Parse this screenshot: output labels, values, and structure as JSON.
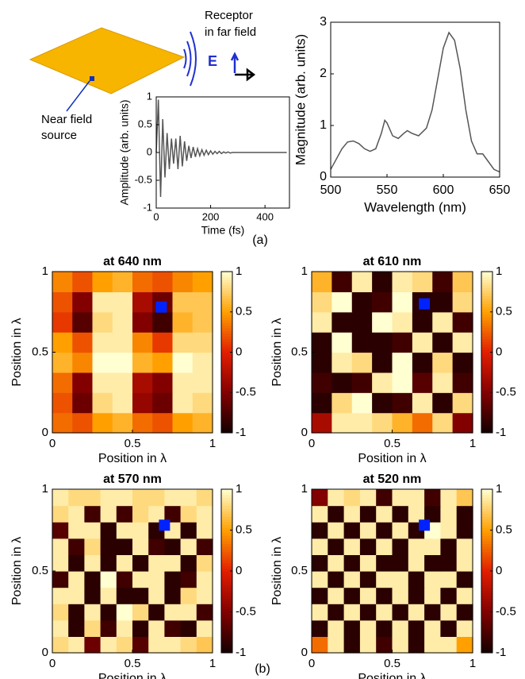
{
  "diagram": {
    "receptor_label": [
      "Receptor",
      "in far field"
    ],
    "source_label": [
      "Near field",
      "source"
    ],
    "field_label": "E"
  },
  "panel_labels": [
    "(a)",
    "(b)"
  ],
  "chart_data": [
    {
      "type": "line",
      "xlabel": "Time (fs)",
      "ylabel": "Amplitude (arb. units)",
      "xlim": [
        0,
        490
      ],
      "ylim": [
        -1,
        1
      ],
      "xticks": [
        0,
        200,
        400
      ],
      "yticks": [
        -1,
        -0.5,
        0,
        0.5,
        1
      ],
      "color": "#555555",
      "x": [
        0,
        8,
        16,
        24,
        32,
        40,
        48,
        56,
        64,
        72,
        80,
        88,
        96,
        104,
        112,
        120,
        128,
        136,
        144,
        152,
        160,
        168,
        176,
        184,
        192,
        200,
        208,
        216,
        224,
        232,
        240,
        248,
        256,
        264,
        272,
        280,
        288,
        296,
        304,
        312,
        320,
        328,
        336,
        344,
        352,
        360,
        368,
        376,
        384,
        392,
        400,
        408,
        416,
        424,
        432,
        440,
        448,
        456,
        464,
        472,
        480
      ],
      "values": [
        0,
        0.95,
        -0.8,
        0.6,
        -0.45,
        0.35,
        -0.3,
        0.25,
        -0.2,
        0.25,
        -0.3,
        0.3,
        -0.25,
        0.2,
        -0.15,
        0.12,
        -0.1,
        0.1,
        -0.08,
        0.07,
        -0.06,
        0.05,
        -0.05,
        0.04,
        -0.04,
        0.03,
        -0.03,
        0.02,
        -0.02,
        0.02,
        -0.02,
        0.01,
        -0.01,
        0.01,
        -0.01,
        0,
        0,
        0,
        0,
        0,
        0,
        0,
        0,
        0,
        0,
        0,
        0,
        0,
        0,
        0,
        0,
        0,
        0,
        0,
        0,
        0,
        0,
        0,
        0,
        0,
        0
      ]
    },
    {
      "type": "line",
      "xlabel": "Wavelength (nm)",
      "ylabel": "Magnitude (arb. units)",
      "xlim": [
        500,
        650
      ],
      "ylim": [
        0,
        3
      ],
      "xticks": [
        500,
        550,
        600,
        650
      ],
      "yticks": [
        0,
        1,
        2,
        3
      ],
      "color": "#555555",
      "x": [
        500,
        505,
        510,
        515,
        520,
        525,
        530,
        535,
        540,
        545,
        548,
        550,
        555,
        560,
        565,
        568,
        572,
        578,
        585,
        590,
        595,
        600,
        605,
        610,
        615,
        620,
        625,
        630,
        635,
        640,
        645,
        650
      ],
      "values": [
        0.15,
        0.35,
        0.55,
        0.68,
        0.7,
        0.65,
        0.55,
        0.5,
        0.55,
        0.85,
        1.1,
        1.05,
        0.8,
        0.75,
        0.85,
        0.9,
        0.85,
        0.8,
        0.95,
        1.3,
        1.9,
        2.5,
        2.8,
        2.65,
        2.1,
        1.3,
        0.7,
        0.45,
        0.45,
        0.3,
        0.15,
        0.1
      ]
    },
    {
      "type": "heatmap",
      "title": "at 640 nm",
      "xlabel": "Position in λ",
      "ylabel": "Position in λ",
      "xlim": [
        0,
        1
      ],
      "ylim": [
        0,
        1
      ],
      "xticks": [
        0,
        0.5,
        1
      ],
      "yticks": [
        0,
        0.5,
        1
      ],
      "clim": [
        -1,
        1
      ],
      "cticks": [
        -1,
        -0.5,
        0,
        0.5,
        1
      ],
      "marker": {
        "x": 0.68,
        "y": 0.78,
        "color": "#0022ff"
      },
      "z": [
        [
          0.3,
          0.2,
          0.5,
          0.6,
          0.3,
          0.2,
          0.5,
          0.6
        ],
        [
          0.2,
          -0.6,
          0.8,
          0.9,
          -0.4,
          -0.6,
          0.9,
          0.8
        ],
        [
          0.3,
          -0.5,
          0.9,
          0.9,
          -0.3,
          -0.5,
          0.9,
          0.9
        ],
        [
          0.6,
          0.4,
          1,
          1,
          0.6,
          0.5,
          1,
          0.9
        ],
        [
          0.5,
          0.2,
          0.9,
          0.9,
          0.4,
          0.1,
          0.8,
          0.8
        ],
        [
          0.1,
          -0.7,
          0.8,
          0.9,
          -0.5,
          -0.8,
          0.6,
          0.7
        ],
        [
          0.2,
          -0.5,
          0.9,
          0.9,
          -0.3,
          -0.6,
          0.7,
          0.7
        ],
        [
          0.4,
          0.2,
          0.5,
          0.6,
          0.3,
          0.2,
          0.4,
          0.5
        ]
      ]
    },
    {
      "type": "heatmap",
      "title": "at 610 nm",
      "xlabel": "Position in λ",
      "ylabel": "Position in λ",
      "xlim": [
        0,
        1
      ],
      "ylim": [
        0,
        1
      ],
      "xticks": [
        0,
        0.5,
        1
      ],
      "yticks": [
        0,
        0.5,
        1
      ],
      "clim": [
        -1,
        1
      ],
      "cticks": [
        -1,
        -0.5,
        0,
        0.5,
        1
      ],
      "marker": {
        "x": 0.7,
        "y": 0.8,
        "color": "#0022ff"
      },
      "z": [
        [
          -0.3,
          0.9,
          0.9,
          0.8,
          0.6,
          0.3,
          0.8,
          -0.5
        ],
        [
          -0.9,
          0.8,
          1,
          -0.9,
          -0.8,
          0.9,
          -0.9,
          0.8
        ],
        [
          -0.8,
          -0.9,
          -0.8,
          0.9,
          1,
          -0.7,
          0.9,
          -0.8
        ],
        [
          -0.9,
          0.9,
          0.8,
          -0.9,
          1,
          -0.9,
          0.8,
          -0.9
        ],
        [
          -0.9,
          1,
          -0.9,
          -0.9,
          -0.8,
          0.9,
          -0.9,
          0.9
        ],
        [
          0.9,
          -0.9,
          -0.9,
          1,
          0.9,
          -0.9,
          0.9,
          -0.8
        ],
        [
          0.8,
          1,
          -0.9,
          -0.8,
          1,
          -0.9,
          -0.9,
          0.8
        ],
        [
          0.6,
          -0.8,
          0.9,
          -0.9,
          0.9,
          0.8,
          -0.8,
          0.7
        ]
      ]
    },
    {
      "type": "heatmap",
      "title": "at 570 nm",
      "xlabel": "Position in λ",
      "ylabel": "Position in λ",
      "xlim": [
        0,
        1
      ],
      "ylim": [
        0,
        1
      ],
      "xticks": [
        0,
        0.5,
        1
      ],
      "yticks": [
        0,
        0.5,
        1
      ],
      "clim": [
        -1,
        1
      ],
      "cticks": [
        -1,
        -0.5,
        0,
        0.5,
        1
      ],
      "marker": {
        "x": 0.7,
        "y": 0.78,
        "color": "#0022ff"
      },
      "z": [
        [
          0.8,
          0.9,
          -0.6,
          0.9,
          0.8,
          -0.7,
          0.9,
          0.9,
          0.8,
          0.7
        ],
        [
          0.9,
          -0.9,
          0.8,
          -0.8,
          0.9,
          -0.9,
          0.9,
          -0.8,
          -0.9,
          0.9
        ],
        [
          0.8,
          -0.9,
          0.9,
          -0.9,
          1,
          0.8,
          -0.9,
          0.9,
          0.9,
          -0.8
        ],
        [
          0.9,
          0.9,
          -0.9,
          0.9,
          -0.9,
          -0.9,
          0.9,
          -0.9,
          0.8,
          0.9
        ],
        [
          -0.8,
          0.9,
          -0.9,
          1,
          -0.8,
          0.9,
          0.9,
          -0.9,
          -0.8,
          0.9
        ],
        [
          0.9,
          -0.9,
          0.9,
          -0.9,
          0.9,
          -0.9,
          0.9,
          0.9,
          -0.9,
          0.8
        ],
        [
          0.9,
          -0.8,
          0.8,
          -0.9,
          -0.9,
          0.9,
          -0.8,
          -0.9,
          0.9,
          -0.8
        ],
        [
          -0.7,
          0.9,
          0.9,
          -0.9,
          0.9,
          0.9,
          -0.9,
          0.9,
          -0.9,
          0.9
        ],
        [
          0.8,
          0.9,
          -0.8,
          0.9,
          -0.8,
          0.8,
          0.9,
          -0.8,
          0.8,
          0.9
        ],
        [
          0.9,
          0.8,
          0.8,
          0.9,
          0.9,
          0.8,
          0.8,
          0.9,
          0.9,
          0.8
        ]
      ]
    },
    {
      "type": "heatmap",
      "title": "at 520 nm",
      "xlabel": "Position in λ",
      "ylabel": "Position in λ",
      "xlim": [
        0,
        1
      ],
      "ylim": [
        0,
        1
      ],
      "xticks": [
        0,
        0.5,
        1
      ],
      "yticks": [
        0,
        0.5,
        1
      ],
      "clim": [
        -1,
        1
      ],
      "cticks": [
        -1,
        -0.5,
        0,
        0.5,
        1
      ],
      "marker": {
        "x": 0.7,
        "y": 0.78,
        "color": "#0022ff"
      },
      "z": [
        [
          0.3,
          0.9,
          -0.9,
          0.9,
          -0.8,
          0.9,
          -0.9,
          0.9,
          0.9,
          0.5
        ],
        [
          -0.9,
          0.9,
          -0.9,
          0.9,
          -0.9,
          0.9,
          -0.9,
          0.9,
          -0.9,
          0.9
        ],
        [
          0.9,
          -0.9,
          0.9,
          -0.9,
          0.9,
          -0.9,
          0.9,
          -0.9,
          0.9,
          -0.9
        ],
        [
          -0.9,
          0.9,
          -0.9,
          0.9,
          -0.9,
          0.9,
          -0.9,
          0.9,
          -0.9,
          0.9
        ],
        [
          0.9,
          -0.9,
          0.9,
          -0.9,
          0.9,
          0.9,
          -0.9,
          0.9,
          0.9,
          -0.9
        ],
        [
          -0.9,
          0.9,
          -0.9,
          0.9,
          -0.9,
          -0.9,
          0.9,
          -0.9,
          -0.9,
          0.9
        ],
        [
          0.9,
          -0.9,
          0.9,
          -0.9,
          0.9,
          -0.9,
          0.9,
          0.9,
          -0.9,
          0.9
        ],
        [
          -0.9,
          0.9,
          -0.9,
          0.9,
          -0.9,
          0.9,
          -0.9,
          1,
          0.9,
          -0.9
        ],
        [
          0.9,
          -0.9,
          0.9,
          -0.9,
          0.9,
          -0.9,
          0.9,
          -0.9,
          0.9,
          -0.9
        ],
        [
          -0.5,
          0.9,
          0.8,
          0.9,
          -0.8,
          0.9,
          0.9,
          -0.8,
          0.9,
          0.7
        ]
      ]
    }
  ]
}
